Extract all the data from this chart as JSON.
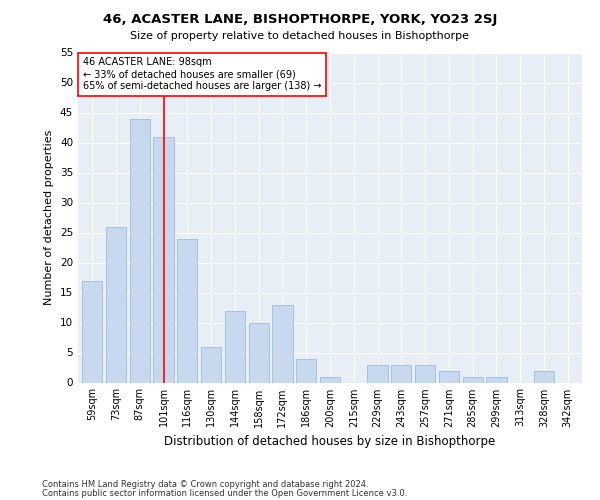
{
  "title": "46, ACASTER LANE, BISHOPTHORPE, YORK, YO23 2SJ",
  "subtitle": "Size of property relative to detached houses in Bishopthorpe",
  "xlabel": "Distribution of detached houses by size in Bishopthorpe",
  "ylabel": "Number of detached properties",
  "categories": [
    "59sqm",
    "73sqm",
    "87sqm",
    "101sqm",
    "116sqm",
    "130sqm",
    "144sqm",
    "158sqm",
    "172sqm",
    "186sqm",
    "200sqm",
    "215sqm",
    "229sqm",
    "243sqm",
    "257sqm",
    "271sqm",
    "285sqm",
    "299sqm",
    "313sqm",
    "328sqm",
    "342sqm"
  ],
  "values": [
    17,
    26,
    44,
    41,
    24,
    6,
    12,
    10,
    13,
    4,
    1,
    0,
    3,
    3,
    3,
    2,
    1,
    1,
    0,
    2,
    0
  ],
  "bar_color": "#c8d9ef",
  "bar_edge_color": "#a0bcd8",
  "vline_x": 3.0,
  "annotation_line1": "46 ACASTER LANE: 98sqm",
  "annotation_line2": "← 33% of detached houses are smaller (69)",
  "annotation_line3": "65% of semi-detached houses are larger (138) →",
  "ylim": [
    0,
    55
  ],
  "yticks": [
    0,
    5,
    10,
    15,
    20,
    25,
    30,
    35,
    40,
    45,
    50,
    55
  ],
  "background_color": "#e8eef5",
  "grid_color": "#ffffff",
  "footer_line1": "Contains HM Land Registry data © Crown copyright and database right 2024.",
  "footer_line2": "Contains public sector information licensed under the Open Government Licence v3.0."
}
